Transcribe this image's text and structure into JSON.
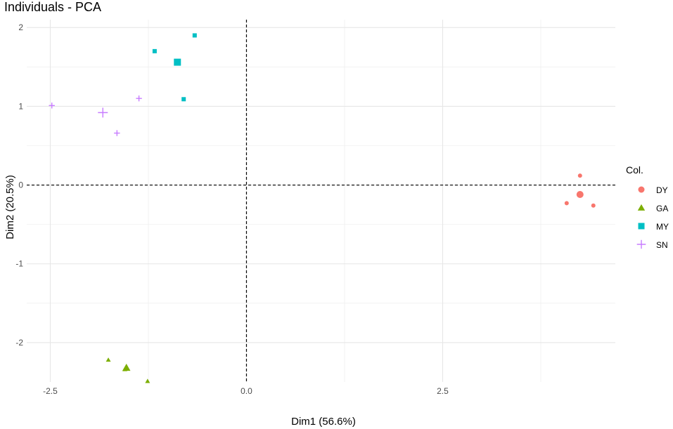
{
  "chart_data": {
    "type": "scatter",
    "title": "Individuals - PCA",
    "xlabel": "Dim1 (56.6%)",
    "ylabel": "Dim2 (20.5%)",
    "xlim": [
      -2.8,
      4.7
    ],
    "ylim": [
      -2.5,
      2.1
    ],
    "x_ticks": [
      {
        "value": -2.5,
        "label": "-2.5"
      },
      {
        "value": 0,
        "label": "0.0"
      },
      {
        "value": 2.5,
        "label": "2.5"
      }
    ],
    "y_ticks": [
      {
        "value": 2,
        "label": "2"
      },
      {
        "value": 1,
        "label": "1"
      },
      {
        "value": 0,
        "label": "0"
      },
      {
        "value": -1,
        "label": "-1"
      },
      {
        "value": -2,
        "label": "-2"
      }
    ],
    "grid": true,
    "reference_lines": {
      "x": 0,
      "y": 0,
      "style": "dashed"
    },
    "legend": {
      "title": "Col.",
      "position": "right"
    },
    "series": [
      {
        "name": "DY",
        "color": "#F8766D",
        "shape": "circle",
        "points": [
          [
            4.25,
            0.12
          ],
          [
            4.08,
            -0.23
          ],
          [
            4.42,
            -0.26
          ]
        ],
        "centroid": [
          4.25,
          -0.12
        ]
      },
      {
        "name": "GA",
        "color": "#7CAE00",
        "shape": "triangle",
        "points": [
          [
            -1.76,
            -2.22
          ],
          [
            -1.55,
            -2.34
          ],
          [
            -1.26,
            -2.49
          ]
        ],
        "centroid": [
          -1.53,
          -2.32
        ]
      },
      {
        "name": "MY",
        "color": "#00BFC4",
        "shape": "square",
        "points": [
          [
            -1.17,
            1.7
          ],
          [
            -0.66,
            1.9
          ],
          [
            -0.8,
            1.09
          ]
        ],
        "centroid": [
          -0.88,
          1.56
        ]
      },
      {
        "name": "SN",
        "color": "#C77CFF",
        "shape": "plus",
        "points": [
          [
            -2.48,
            1.01
          ],
          [
            -1.65,
            0.66
          ],
          [
            -1.37,
            1.1
          ]
        ],
        "centroid": [
          -1.83,
          0.92
        ]
      }
    ]
  }
}
